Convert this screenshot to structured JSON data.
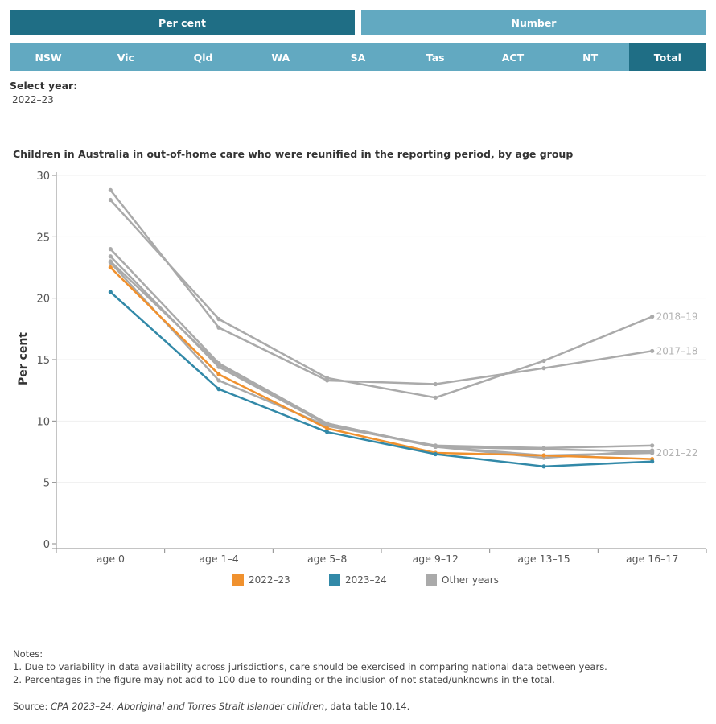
{
  "colors": {
    "active": "#1f6e85",
    "inactive": "#62a9c1",
    "series_2022": "#f0912e",
    "series_2023": "#3289a8",
    "other": "#aaaaaa"
  },
  "toggle": {
    "percent_label": "Per cent",
    "number_label": "Number",
    "active": "percent"
  },
  "tabs": [
    {
      "label": "NSW",
      "active": false
    },
    {
      "label": "Vic",
      "active": false
    },
    {
      "label": "Qld",
      "active": false
    },
    {
      "label": "WA",
      "active": false
    },
    {
      "label": "SA",
      "active": false
    },
    {
      "label": "Tas",
      "active": false
    },
    {
      "label": "ACT",
      "active": false
    },
    {
      "label": "NT",
      "active": false
    },
    {
      "label": "Total",
      "active": true
    }
  ],
  "select_year": {
    "label": "Select year:",
    "value": "2022–23"
  },
  "chart_title": {
    "pre": "Children in ",
    "highlight": "Australia",
    "post": " in out-of-home care who were reunified in the reporting period, by age group"
  },
  "chart_data": {
    "type": "line",
    "title": "Children in Australia in out-of-home care who were reunified in the reporting period, by age group",
    "ylabel": "Per cent",
    "xlabel": "",
    "categories": [
      "age 0",
      "age 1–4",
      "age 5–8",
      "age 9–12",
      "age 13–15",
      "age 16–17"
    ],
    "ylim": [
      0,
      30
    ],
    "yticks": [
      0,
      5,
      10,
      15,
      20,
      25,
      30
    ],
    "series": [
      {
        "name": "",
        "group": "other",
        "values": [
          24.0,
          14.7,
          9.8,
          7.9,
          7.7,
          7.5
        ]
      },
      {
        "name": "",
        "group": "other",
        "values": [
          22.9,
          13.3,
          9.6,
          8.0,
          7.8,
          8.0
        ]
      },
      {
        "name": "",
        "group": "other",
        "values": [
          23.4,
          14.4,
          9.7,
          7.9,
          7.0,
          7.6
        ]
      },
      {
        "name": "2017–18",
        "group": "other",
        "values": [
          28.8,
          17.6,
          13.3,
          13.0,
          14.3,
          15.7
        ]
      },
      {
        "name": "2018–19",
        "group": "other",
        "values": [
          28.0,
          18.3,
          13.5,
          11.9,
          14.9,
          18.5
        ]
      },
      {
        "name": "2021–22",
        "group": "other",
        "values": [
          23.0,
          14.6,
          9.8,
          7.9,
          7.2,
          7.4
        ]
      },
      {
        "name": "2022–23",
        "group": "2022",
        "values": [
          22.5,
          13.8,
          9.4,
          7.4,
          7.2,
          6.9
        ]
      },
      {
        "name": "2023–24",
        "group": "2023",
        "values": [
          20.5,
          12.6,
          9.1,
          7.3,
          6.3,
          6.7
        ]
      }
    ],
    "legend": [
      "2022–23",
      "2023–24",
      "Other years"
    ],
    "legend_position": "bottom",
    "grid": true
  },
  "notes": {
    "heading": "Notes:",
    "items": [
      "1. Due to variability in data availability across jurisdictions, care should be exercised in comparing national data between years.",
      "2. Percentages in the figure may not add to 100 due to rounding or the inclusion of not stated/unknowns in the total."
    ]
  },
  "source": {
    "prefix": "Source: ",
    "title": "CPA 2023–24: Aboriginal and Torres Strait Islander children",
    "suffix": ", data table 10.14."
  }
}
